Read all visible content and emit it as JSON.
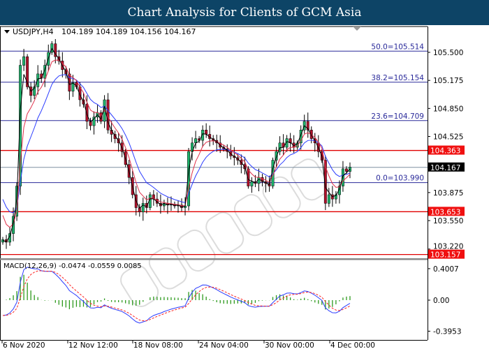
{
  "title": "Chart Analysis for Clients of GCM Asia",
  "watermark": "GCMASIA",
  "main": {
    "symbol_label": "USDJPY,H4",
    "ohlc_text": "104.189 104.189 104.156 104.167",
    "y_ticks": [
      "105.500",
      "105.175",
      "104.850",
      "104.525",
      "103.875",
      "103.550",
      "103.220"
    ],
    "y_tick_values": [
      105.5,
      105.175,
      104.85,
      104.525,
      103.875,
      103.55,
      103.22
    ],
    "current_price": "104.167",
    "current_price_value": 104.167,
    "fib_levels": [
      {
        "label": "50.0=105.514",
        "value": 105.514
      },
      {
        "label": "38.2=105.154",
        "value": 105.154
      },
      {
        "label": "23.6=104.709",
        "value": 104.709
      },
      {
        "label": "0.0=103.990",
        "value": 103.99
      }
    ],
    "sr_levels": [
      {
        "label": "104.363",
        "value": 104.363
      },
      {
        "label": "103.653",
        "value": 103.653
      },
      {
        "label": "103.157",
        "value": 103.157
      }
    ],
    "closes": [
      103.33,
      103.3,
      103.4,
      103.6,
      103.95,
      105.35,
      105.45,
      105.1,
      105.0,
      105.1,
      105.25,
      105.2,
      105.35,
      105.5,
      105.6,
      105.45,
      105.4,
      105.3,
      105.25,
      105.05,
      105.15,
      105.1,
      104.95,
      104.9,
      104.7,
      104.65,
      104.75,
      104.8,
      104.7,
      104.95,
      104.6,
      104.55,
      104.5,
      104.45,
      104.35,
      104.2,
      104.05,
      103.85,
      103.7,
      103.65,
      103.75,
      103.7,
      103.85,
      103.8,
      103.75,
      103.72,
      103.75,
      103.73,
      103.74,
      103.72,
      103.73,
      103.7,
      103.72,
      104.35,
      104.45,
      104.5,
      104.48,
      104.6,
      104.55,
      104.5,
      104.48,
      104.45,
      104.4,
      104.38,
      104.35,
      104.3,
      104.28,
      104.25,
      104.2,
      104.15,
      103.95,
      104.0,
      103.98,
      104.05,
      104.0,
      103.98,
      103.95,
      104.25,
      104.35,
      104.45,
      104.4,
      104.5,
      104.45,
      104.4,
      104.45,
      104.6,
      104.7,
      104.6,
      104.5,
      104.45,
      104.35,
      104.25,
      103.75,
      103.85,
      103.8,
      103.85,
      103.95,
      104.15,
      104.12,
      104.17
    ],
    "colors": {
      "bull": "#1db36b",
      "bear": "#b0102a",
      "fib": "#2a2a9a",
      "sr": "#e00000",
      "ma_fast": "#000000",
      "ma_mid": "#e0304a",
      "ma_slow": "#2b3cff",
      "current": "#7f8fa0"
    }
  },
  "macd": {
    "label": "MACD(12,26,9) -0.0474 -0.0559 0.0085",
    "y_ticks": [
      "0.4007",
      "0.00",
      "-0.3953"
    ],
    "y_tick_values": [
      0.4007,
      0,
      -0.3953
    ],
    "colors": {
      "histogram": "#2e9a1e",
      "macd": "#2b3cff",
      "signal": "#ff2020"
    }
  },
  "x_axis": {
    "labels": [
      "6 Nov 2020",
      "12 Nov 12:00",
      "18 Nov 08:00",
      "24 Nov 04:00",
      "30 Nov 00:00",
      "4 Dec 00:00"
    ]
  }
}
